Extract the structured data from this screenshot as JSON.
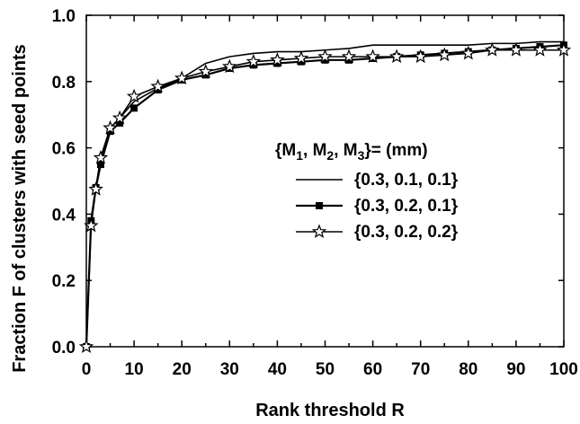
{
  "chart_data": {
    "type": "line",
    "xlabel": "Rank threshold R",
    "ylabel": "Fraction F of clusters with seed points",
    "xlim": [
      0,
      100
    ],
    "ylim": [
      0,
      1.0
    ],
    "xticks": [
      "0",
      "10",
      "20",
      "30",
      "40",
      "50",
      "60",
      "70",
      "80",
      "90",
      "100"
    ],
    "yticks": [
      "0.0",
      "0.2",
      "0.4",
      "0.6",
      "0.8",
      "1.0"
    ],
    "grid": false,
    "legend": {
      "title": "{M1, M2, M3}= (mm)",
      "title_parts": {
        "open": "{M",
        "s1": "1",
        "c1": ", M",
        "s2": "2",
        "c2": ", M",
        "s3": "3",
        "close": "}= (mm)"
      },
      "placement": "center-right"
    },
    "series": [
      {
        "name": "{0.3, 0.1, 0.1}",
        "marker": "none",
        "x": [
          0,
          1,
          2,
          3,
          5,
          7,
          10,
          15,
          20,
          25,
          30,
          35,
          40,
          45,
          50,
          55,
          60,
          65,
          70,
          75,
          80,
          85,
          90,
          95,
          100
        ],
        "y": [
          0.0,
          0.38,
          0.48,
          0.57,
          0.66,
          0.69,
          0.74,
          0.78,
          0.81,
          0.855,
          0.875,
          0.885,
          0.89,
          0.89,
          0.895,
          0.9,
          0.91,
          0.91,
          0.91,
          0.91,
          0.91,
          0.915,
          0.915,
          0.92,
          0.92
        ]
      },
      {
        "name": "{0.3, 0.2, 0.1}",
        "marker": "square",
        "x": [
          0,
          1,
          2,
          3,
          5,
          7,
          10,
          15,
          20,
          25,
          30,
          35,
          40,
          45,
          50,
          55,
          60,
          65,
          70,
          75,
          80,
          85,
          90,
          95,
          100
        ],
        "y": [
          0.0,
          0.38,
          0.48,
          0.55,
          0.65,
          0.675,
          0.72,
          0.775,
          0.805,
          0.82,
          0.84,
          0.85,
          0.855,
          0.86,
          0.865,
          0.865,
          0.87,
          0.875,
          0.88,
          0.885,
          0.89,
          0.895,
          0.9,
          0.905,
          0.91
        ]
      },
      {
        "name": "{0.3, 0.2, 0.2}",
        "marker": "star",
        "x": [
          0,
          1,
          2,
          3,
          5,
          7,
          10,
          15,
          20,
          25,
          30,
          35,
          40,
          45,
          50,
          55,
          60,
          65,
          70,
          75,
          80,
          85,
          90,
          95,
          100
        ],
        "y": [
          0.0,
          0.365,
          0.475,
          0.57,
          0.66,
          0.69,
          0.755,
          0.785,
          0.81,
          0.83,
          0.845,
          0.86,
          0.865,
          0.87,
          0.875,
          0.875,
          0.875,
          0.875,
          0.875,
          0.88,
          0.885,
          0.895,
          0.895,
          0.895,
          0.895
        ]
      }
    ]
  }
}
